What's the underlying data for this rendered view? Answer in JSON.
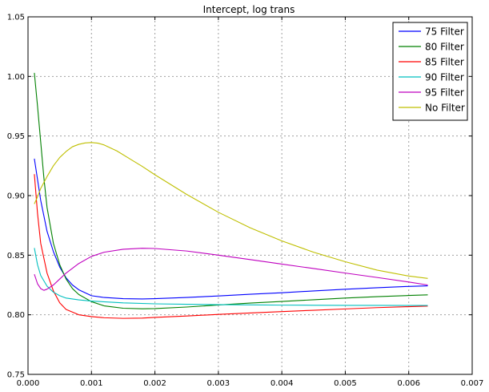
{
  "chart_data": {
    "type": "line",
    "title": "Intercept, log trans",
    "xlabel": "",
    "ylabel": "",
    "xlim": [
      0.0,
      0.007
    ],
    "ylim": [
      0.75,
      1.05
    ],
    "x_ticks": [
      "0.000",
      "0.001",
      "0.002",
      "0.003",
      "0.004",
      "0.005",
      "0.006",
      "0.007"
    ],
    "y_ticks": [
      "0.75",
      "0.80",
      "0.85",
      "0.90",
      "0.95",
      "1.00",
      "1.05"
    ],
    "grid": true,
    "legend_position": "top-right",
    "series": [
      {
        "name": "75 Filter",
        "color": "#0000ff",
        "points": [
          [
            0.0001,
            0.931
          ],
          [
            0.0002,
            0.896
          ],
          [
            0.0003,
            0.87
          ],
          [
            0.0004,
            0.853
          ],
          [
            0.0005,
            0.84
          ],
          [
            0.0006,
            0.831
          ],
          [
            0.0007,
            0.825
          ],
          [
            0.0008,
            0.821
          ],
          [
            0.001,
            0.816
          ],
          [
            0.0012,
            0.8145
          ],
          [
            0.0015,
            0.8135
          ],
          [
            0.0018,
            0.8133
          ],
          [
            0.002,
            0.8135
          ],
          [
            0.0025,
            0.8145
          ],
          [
            0.003,
            0.8158
          ],
          [
            0.0035,
            0.8172
          ],
          [
            0.004,
            0.8185
          ],
          [
            0.0045,
            0.82
          ],
          [
            0.005,
            0.8214
          ],
          [
            0.0055,
            0.8227
          ],
          [
            0.006,
            0.8238
          ],
          [
            0.0063,
            0.8243
          ]
        ]
      },
      {
        "name": "80 Filter",
        "color": "#008000",
        "points": [
          [
            0.0001,
            1.003
          ],
          [
            0.00015,
            0.975
          ],
          [
            0.0002,
            0.945
          ],
          [
            0.00025,
            0.915
          ],
          [
            0.0003,
            0.89
          ],
          [
            0.0004,
            0.86
          ],
          [
            0.0005,
            0.842
          ],
          [
            0.0006,
            0.83
          ],
          [
            0.0007,
            0.822
          ],
          [
            0.0008,
            0.817
          ],
          [
            0.001,
            0.811
          ],
          [
            0.0012,
            0.8075
          ],
          [
            0.0015,
            0.8055
          ],
          [
            0.0018,
            0.805
          ],
          [
            0.002,
            0.8052
          ],
          [
            0.0025,
            0.8065
          ],
          [
            0.003,
            0.8082
          ],
          [
            0.0035,
            0.8098
          ],
          [
            0.004,
            0.8112
          ],
          [
            0.0045,
            0.8126
          ],
          [
            0.005,
            0.814
          ],
          [
            0.0055,
            0.8152
          ],
          [
            0.006,
            0.8162
          ],
          [
            0.0063,
            0.8167
          ]
        ]
      },
      {
        "name": "85 Filter",
        "color": "#ff0000",
        "points": [
          [
            0.0001,
            0.918
          ],
          [
            0.00015,
            0.885
          ],
          [
            0.0002,
            0.86
          ],
          [
            0.0003,
            0.835
          ],
          [
            0.0004,
            0.82
          ],
          [
            0.0005,
            0.81
          ],
          [
            0.0006,
            0.8045
          ],
          [
            0.0008,
            0.8
          ],
          [
            0.001,
            0.7985
          ],
          [
            0.0012,
            0.7975
          ],
          [
            0.0015,
            0.797
          ],
          [
            0.0018,
            0.7972
          ],
          [
            0.002,
            0.7978
          ],
          [
            0.0025,
            0.799
          ],
          [
            0.003,
            0.8003
          ],
          [
            0.0035,
            0.8015
          ],
          [
            0.004,
            0.8027
          ],
          [
            0.0045,
            0.8038
          ],
          [
            0.005,
            0.8049
          ],
          [
            0.0055,
            0.806
          ],
          [
            0.006,
            0.8068
          ],
          [
            0.0063,
            0.8073
          ]
        ]
      },
      {
        "name": "90 Filter",
        "color": "#00bfbf",
        "points": [
          [
            0.0001,
            0.856
          ],
          [
            0.00015,
            0.842
          ],
          [
            0.0002,
            0.833
          ],
          [
            0.0003,
            0.824
          ],
          [
            0.0004,
            0.819
          ],
          [
            0.0005,
            0.816
          ],
          [
            0.0006,
            0.814
          ],
          [
            0.0008,
            0.8125
          ],
          [
            0.001,
            0.8115
          ],
          [
            0.0015,
            0.81
          ],
          [
            0.002,
            0.8092
          ],
          [
            0.0025,
            0.8088
          ],
          [
            0.003,
            0.8085
          ],
          [
            0.0035,
            0.8083
          ],
          [
            0.004,
            0.8081
          ],
          [
            0.0045,
            0.808
          ],
          [
            0.005,
            0.8079
          ],
          [
            0.0055,
            0.8079
          ],
          [
            0.006,
            0.8078
          ],
          [
            0.0063,
            0.8078
          ]
        ]
      },
      {
        "name": "95 Filter",
        "color": "#bf00bf",
        "points": [
          [
            0.0001,
            0.834
          ],
          [
            0.00015,
            0.826
          ],
          [
            0.0002,
            0.822
          ],
          [
            0.00025,
            0.8205
          ],
          [
            0.0003,
            0.8215
          ],
          [
            0.0004,
            0.825
          ],
          [
            0.0005,
            0.83
          ],
          [
            0.0006,
            0.835
          ],
          [
            0.0008,
            0.843
          ],
          [
            0.001,
            0.849
          ],
          [
            0.0012,
            0.8525
          ],
          [
            0.0015,
            0.855
          ],
          [
            0.0018,
            0.8558
          ],
          [
            0.002,
            0.8556
          ],
          [
            0.0025,
            0.8535
          ],
          [
            0.003,
            0.85
          ],
          [
            0.0035,
            0.8463
          ],
          [
            0.004,
            0.8425
          ],
          [
            0.0045,
            0.8388
          ],
          [
            0.005,
            0.835
          ],
          [
            0.0055,
            0.8313
          ],
          [
            0.006,
            0.8275
          ],
          [
            0.0063,
            0.825
          ]
        ]
      },
      {
        "name": "No Filter",
        "color": "#bfbf00",
        "points": [
          [
            0.0001,
            0.893
          ],
          [
            0.00015,
            0.899
          ],
          [
            0.0002,
            0.906
          ],
          [
            0.0003,
            0.916
          ],
          [
            0.0004,
            0.925
          ],
          [
            0.0005,
            0.932
          ],
          [
            0.0006,
            0.937
          ],
          [
            0.0007,
            0.941
          ],
          [
            0.0008,
            0.943
          ],
          [
            0.0009,
            0.9442
          ],
          [
            0.001,
            0.9445
          ],
          [
            0.0011,
            0.944
          ],
          [
            0.0012,
            0.9425
          ],
          [
            0.0014,
            0.9375
          ],
          [
            0.0016,
            0.931
          ],
          [
            0.0018,
            0.9245
          ],
          [
            0.002,
            0.9175
          ],
          [
            0.0025,
            0.901
          ],
          [
            0.003,
            0.886
          ],
          [
            0.0035,
            0.873
          ],
          [
            0.004,
            0.862
          ],
          [
            0.0045,
            0.8525
          ],
          [
            0.005,
            0.8445
          ],
          [
            0.0055,
            0.8375
          ],
          [
            0.006,
            0.8325
          ],
          [
            0.0063,
            0.8305
          ]
        ]
      }
    ]
  }
}
